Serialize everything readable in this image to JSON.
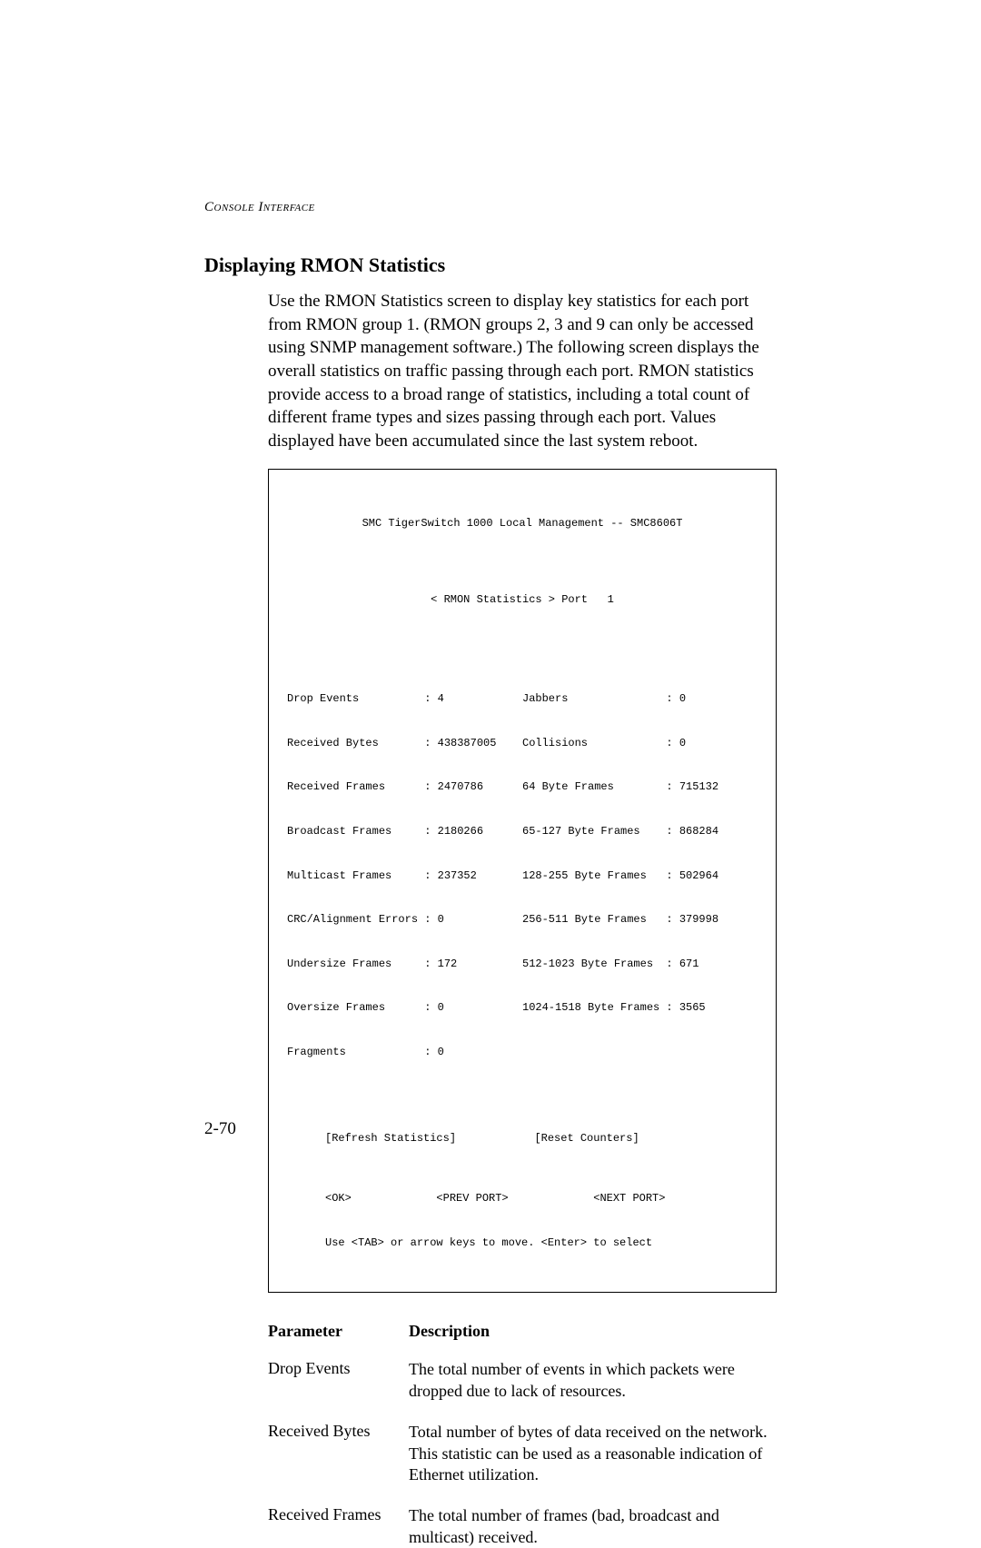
{
  "sectionHeader": "Console Interface",
  "heading": "Displaying RMON Statistics",
  "bodyText": "Use the RMON Statistics screen to display key statistics for each port from RMON group 1. (RMON groups 2, 3 and 9 can only be accessed using SNMP management software.) The following screen displays the overall statistics on traffic passing through each port. RMON statistics provide access to a broad range of statistics, including a total count of different frame types and sizes passing through each port. Values displayed have been accumulated since the last system reboot.",
  "console": {
    "title": "SMC TigerSwitch 1000 Local Management -- SMC8606T",
    "subtitle": "< RMON Statistics > Port   1",
    "leftStats": [
      "Drop Events          : 4",
      "Received Bytes       : 438387005",
      "Received Frames      : 2470786",
      "Broadcast Frames     : 2180266",
      "Multicast Frames     : 237352",
      "CRC/Alignment Errors : 0",
      "Undersize Frames     : 172",
      "Oversize Frames      : 0",
      "Fragments            : 0"
    ],
    "rightStats": [
      "Jabbers               : 0",
      "Collisions            : 0",
      "64 Byte Frames        : 715132",
      "65-127 Byte Frames    : 868284",
      "128-255 Byte Frames   : 502964",
      "256-511 Byte Frames   : 379998",
      "512-1023 Byte Frames  : 671",
      "1024-1518 Byte Frames : 3565",
      ""
    ],
    "actions": "[Refresh Statistics]            [Reset Counters]",
    "navLine1": "<OK>             <PREV PORT>             <NEXT PORT>",
    "navLine2": "Use <TAB> or arrow keys to move. <Enter> to select"
  },
  "paramTable": {
    "headerLabel": "Parameter",
    "headerDesc": "Description",
    "rows": [
      {
        "label": "Drop Events",
        "desc": "The total number of events in which packets were dropped due to lack of resources."
      },
      {
        "label": "Received Bytes",
        "desc": "Total number of bytes of data received on the network. This statistic can be used as a reasonable indication of Ethernet utilization."
      },
      {
        "label": "Received Frames",
        "desc": "The total number of frames (bad, broadcast and multicast) received."
      }
    ]
  },
  "pageNumber": "2-70"
}
